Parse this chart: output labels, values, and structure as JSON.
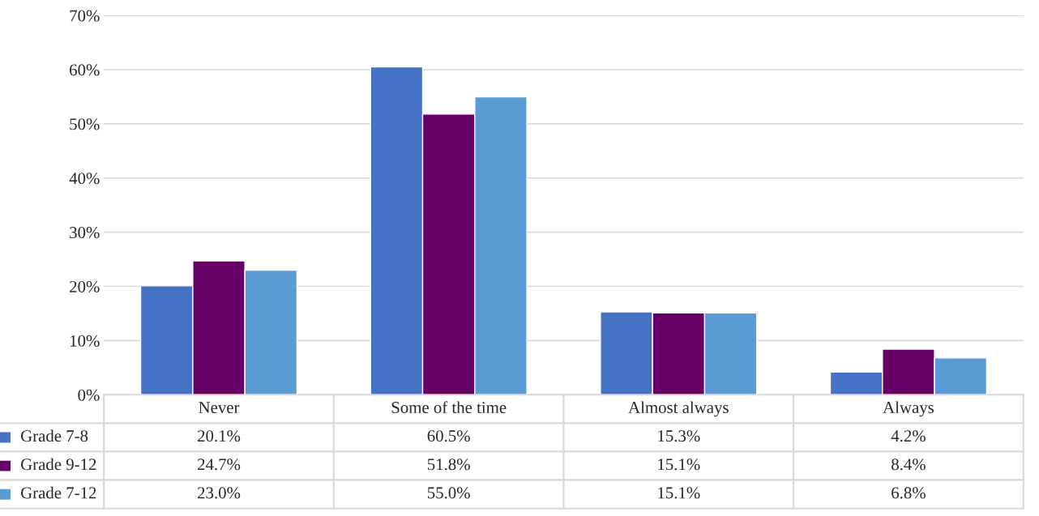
{
  "chart_data": {
    "type": "bar",
    "categories": [
      "Never",
      "Some of the time",
      "Almost always",
      "Always"
    ],
    "series": [
      {
        "name": "Grade 7-8",
        "color": "#4472c4",
        "values": [
          20.1,
          60.5,
          15.3,
          4.2
        ],
        "value_labels": [
          "20.1%",
          "60.5%",
          "15.3%",
          "4.2%"
        ]
      },
      {
        "name": "Grade 9-12",
        "color": "#660066",
        "values": [
          24.7,
          51.8,
          15.1,
          8.4
        ],
        "value_labels": [
          "24.7%",
          "51.8%",
          "15.1%",
          "8.4%"
        ]
      },
      {
        "name": "Grade 7-12",
        "color": "#5b9bd5",
        "values": [
          23.0,
          55.0,
          15.1,
          6.8
        ],
        "value_labels": [
          "23.0%",
          "55.0%",
          "15.1%",
          "6.8%"
        ]
      }
    ],
    "ylim": [
      0,
      70
    ],
    "yticks": [
      {
        "value": 0,
        "label": "0%"
      },
      {
        "value": 10,
        "label": "10%"
      },
      {
        "value": 20,
        "label": "20%"
      },
      {
        "value": 30,
        "label": "30%"
      },
      {
        "value": 40,
        "label": "40%"
      },
      {
        "value": 50,
        "label": "50%"
      },
      {
        "value": 60,
        "label": "60%"
      },
      {
        "value": 70,
        "label": "70%"
      }
    ],
    "grid": "y",
    "tick_labels": "y",
    "legend": "bottom"
  }
}
